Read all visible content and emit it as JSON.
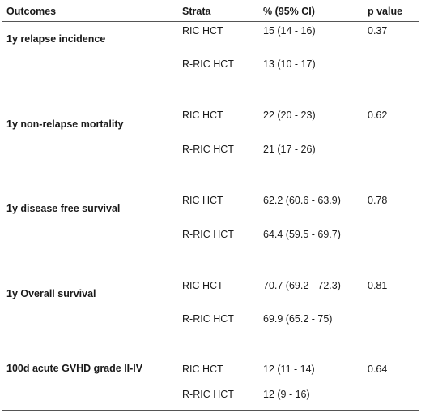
{
  "header": {
    "outcomes": "Outcomes",
    "strata": "Strata",
    "ci": "% (95% CI)",
    "p": "p value"
  },
  "rows": [
    {
      "outcome": "1y relapse incidence",
      "p": "0.37",
      "strata": [
        {
          "name": "RIC HCT",
          "value": "15 (14 - 16)"
        },
        {
          "name": "R-RIC HCT",
          "value": "13 (10 - 17)"
        }
      ]
    },
    {
      "outcome": "1y non-relapse mortality",
      "p": "0.62",
      "strata": [
        {
          "name": "RIC HCT",
          "value": "22 (20 - 23)"
        },
        {
          "name": "R-RIC HCT",
          "value": "21 (17 - 26)"
        }
      ]
    },
    {
      "outcome": "1y disease free survival",
      "p": "0.78",
      "strata": [
        {
          "name": "RIC HCT",
          "value": "62.2 (60.6 - 63.9)"
        },
        {
          "name": "R-RIC HCT",
          "value": "64.4 (59.5 - 69.7)"
        }
      ]
    },
    {
      "outcome": "1y Overall survival",
      "p": "0.81",
      "strata": [
        {
          "name": "RIC HCT",
          "value": "70.7 (69.2 - 72.3)"
        },
        {
          "name": "R-RIC HCT",
          "value": "69.9 (65.2 - 75)"
        }
      ]
    },
    {
      "outcome": "100d acute GVHD grade II-IV",
      "p": "0.64",
      "strata": [
        {
          "name": "RIC HCT",
          "value": "12 (11 - 14)"
        },
        {
          "name": "R-RIC HCT",
          "value": "12 (9 - 16)"
        }
      ]
    }
  ]
}
